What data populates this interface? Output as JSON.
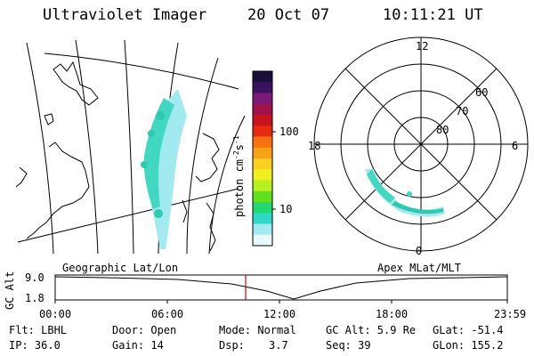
{
  "header": {
    "instrument": "Ultraviolet Imager",
    "date": "20 Oct 07",
    "time": "10:11:21 UT"
  },
  "left_panel": {
    "label": "Geographic Lat/Lon"
  },
  "right_panel": {
    "label": "Apex MLat/MLT",
    "mlt_labels": {
      "top": "12",
      "left": "18",
      "right": "6",
      "bottom": "0"
    },
    "lat_labels": [
      "60",
      "70",
      "80"
    ]
  },
  "colorbar": {
    "units_base": "photon cm",
    "units_exp1": "-2",
    "units_mid": "s",
    "units_exp2": "-1",
    "ticks": [
      "100",
      "10"
    ],
    "colors": [
      "#1a0f3a",
      "#3a1260",
      "#7a1a7a",
      "#a01248",
      "#c8141e",
      "#e82a10",
      "#f87010",
      "#f8a018",
      "#f8d020",
      "#f0f020",
      "#b8f020",
      "#60e020",
      "#20d870",
      "#30d8c8",
      "#a0eaf0",
      "#e8fafc"
    ]
  },
  "timeline": {
    "y_label": "GC Alt",
    "y_ticks": [
      "9.0",
      "1.8"
    ],
    "x_ticks": [
      "00:00",
      "06:00",
      "12:00",
      "18:00",
      "23:59"
    ]
  },
  "status": {
    "row1": {
      "filter": "Flt: LBHL",
      "door": "Door: Open",
      "mode": "Mode: Normal",
      "gc_alt": "GC Alt: 5.9 Re",
      "glat": "GLat: -51.4"
    },
    "row2": {
      "ip": "IP: 36.0",
      "gain": "Gain: 14",
      "dsp_label": "Dsp:",
      "dsp_value": "3.7",
      "seq": "Seq: 39",
      "glon": "GLon: 155.2"
    }
  }
}
